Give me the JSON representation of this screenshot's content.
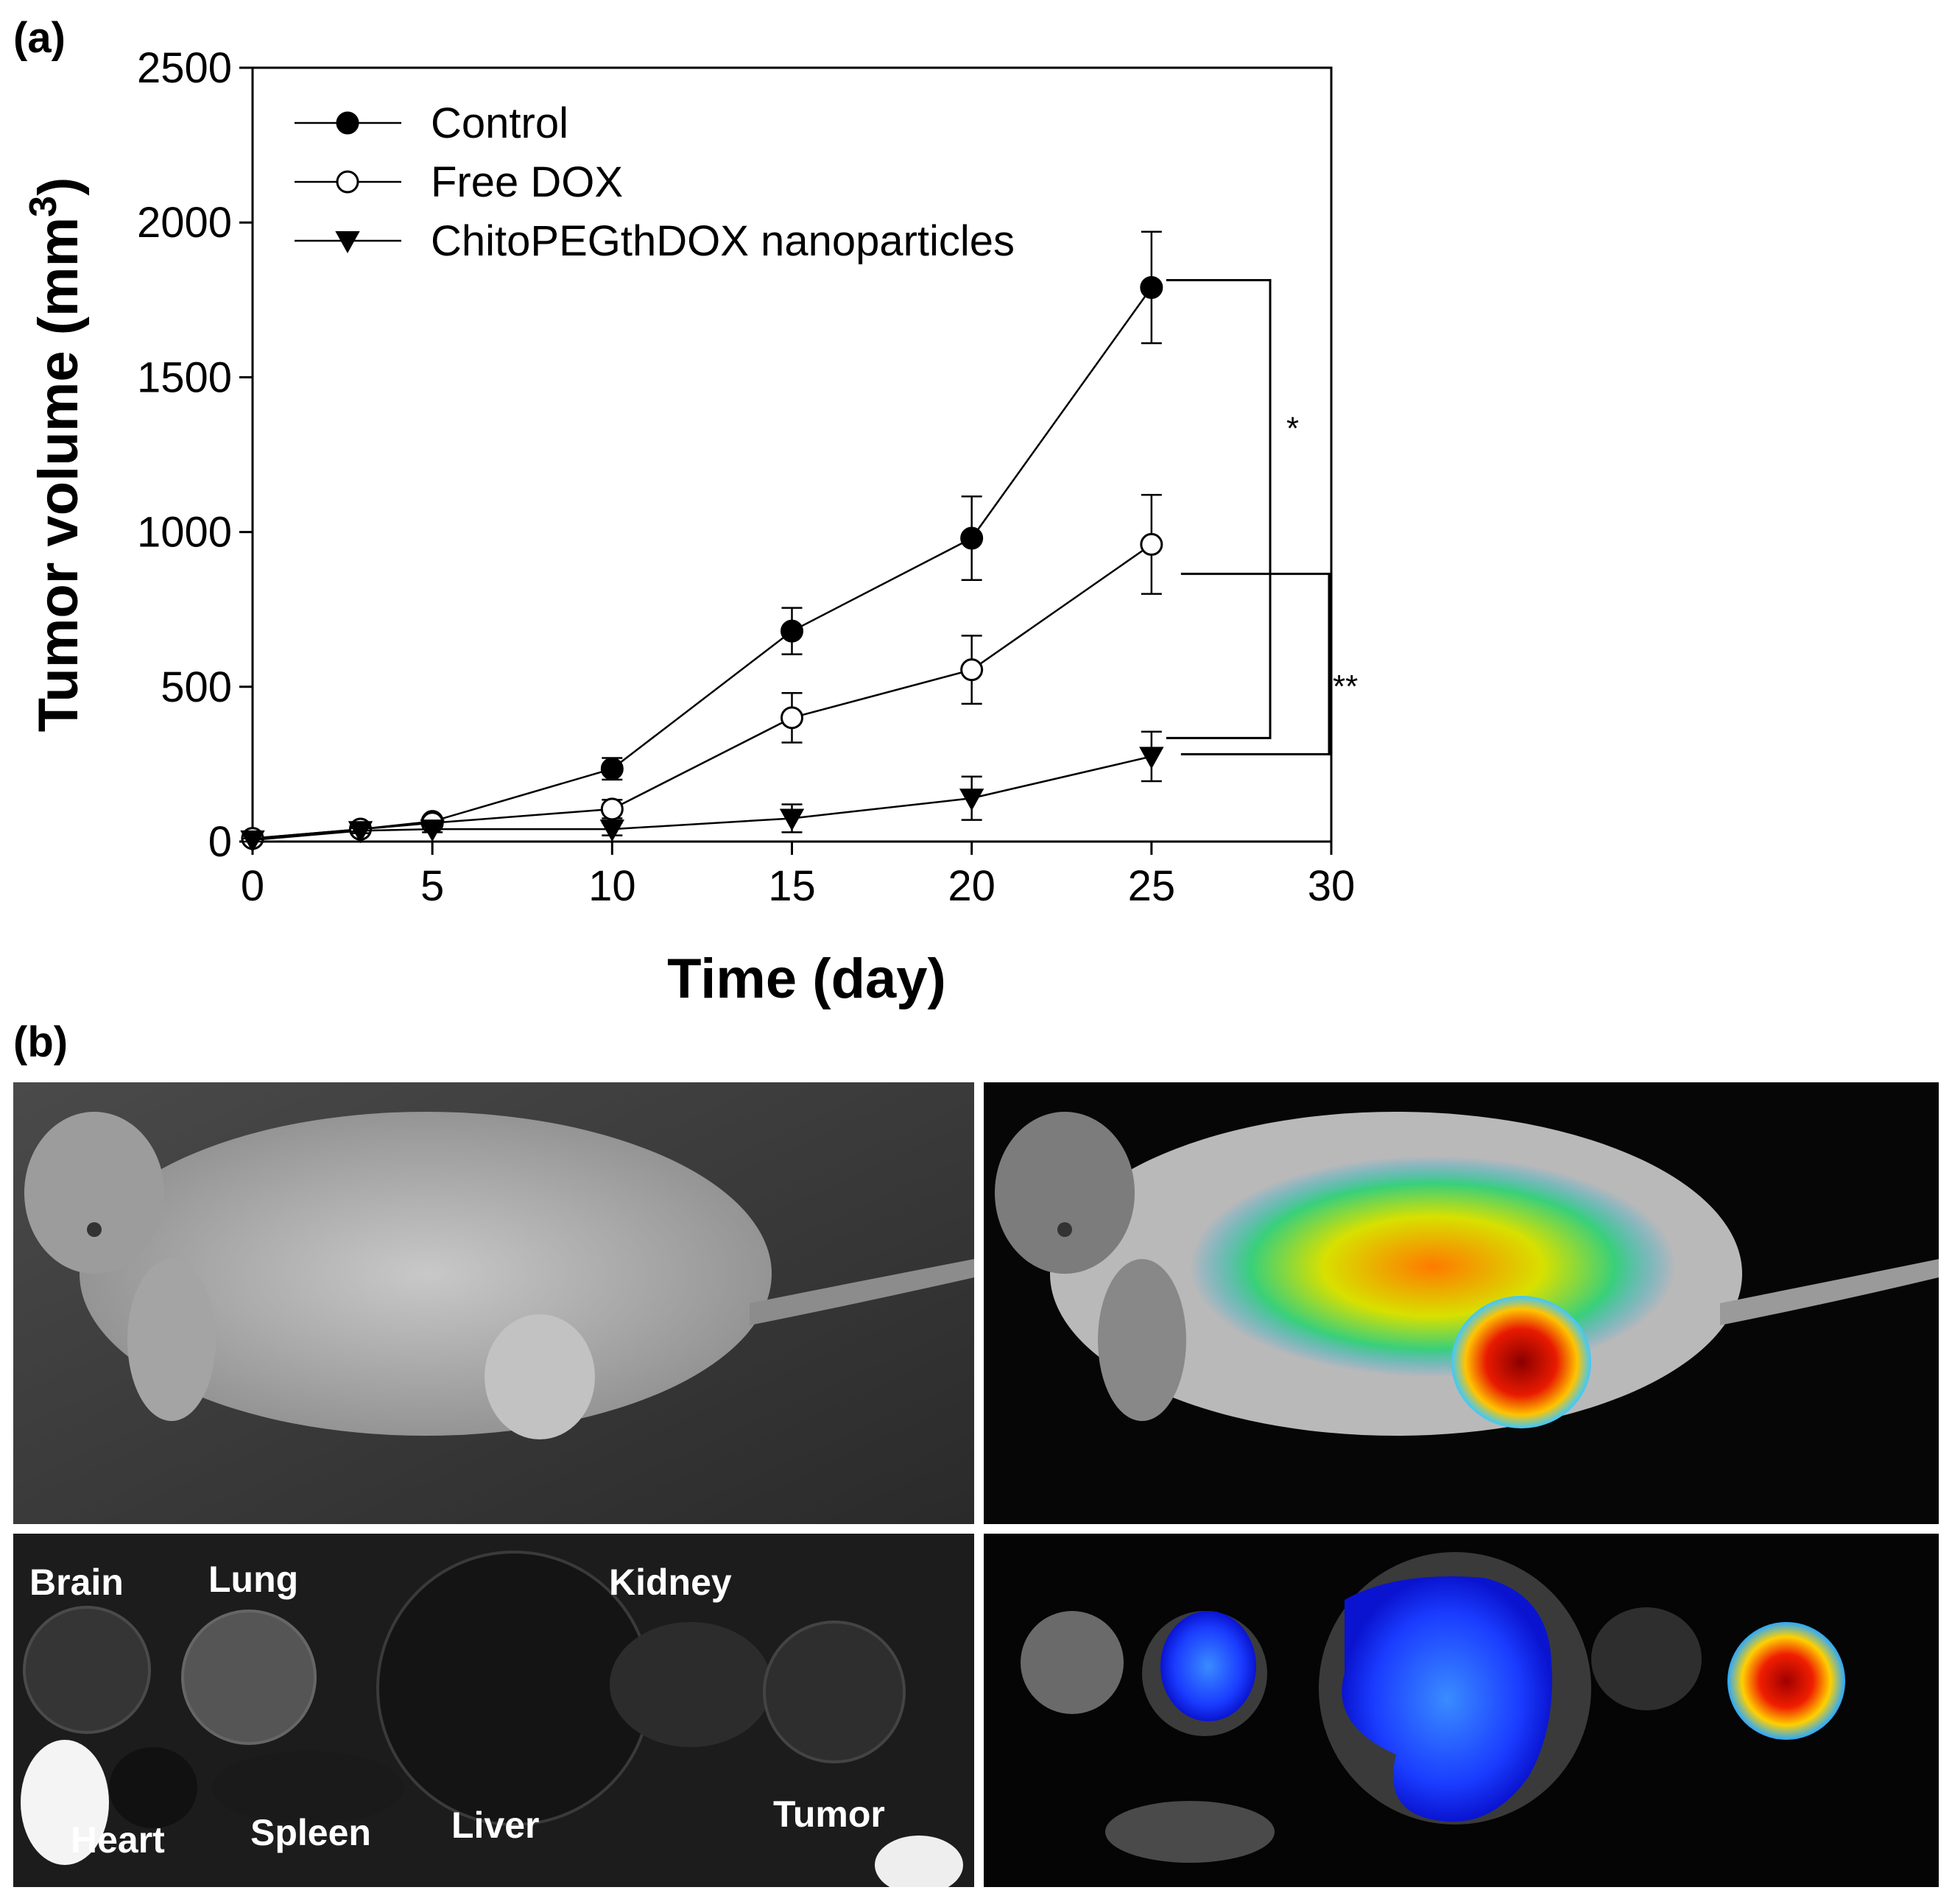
{
  "panels": {
    "a_label": "(a)",
    "b_label": "(b)"
  },
  "chart_data": {
    "type": "line",
    "xlabel": "Time (day)",
    "ylabel": "Tumor volume (mm",
    "ylabel_sup": "3",
    "ylabel_end": ")",
    "xlim": [
      0,
      30
    ],
    "ylim": [
      0,
      2500
    ],
    "xticks": [
      0,
      5,
      10,
      15,
      20,
      25,
      30
    ],
    "yticks": [
      0,
      500,
      1000,
      1500,
      2000,
      2500
    ],
    "grid": false,
    "legend_position": "top-left",
    "series": [
      {
        "name": "Control",
        "marker": "filled-circle",
        "x": [
          0,
          3,
          5,
          10,
          15,
          20,
          25
        ],
        "y": [
          10,
          40,
          65,
          235,
          680,
          980,
          1790
        ],
        "err": [
          5,
          10,
          12,
          35,
          75,
          135,
          180
        ]
      },
      {
        "name": "Free DOX",
        "marker": "open-circle",
        "x": [
          0,
          3,
          5,
          10,
          15,
          20,
          25
        ],
        "y": [
          10,
          40,
          60,
          105,
          400,
          555,
          960
        ],
        "err": [
          5,
          10,
          12,
          30,
          80,
          110,
          160
        ]
      },
      {
        "name": "ChitoPEGthDOX nanoparticles",
        "marker": "filled-triangle-down",
        "x": [
          0,
          3,
          5,
          10,
          15,
          20,
          25
        ],
        "y": [
          5,
          35,
          40,
          40,
          75,
          140,
          275
        ],
        "err": [
          5,
          8,
          10,
          20,
          45,
          70,
          80
        ]
      }
    ],
    "annotations": [
      {
        "text": "*",
        "between": [
          "Control",
          "ChitoPEGthDOX nanoparticles"
        ]
      },
      {
        "text": "**",
        "between": [
          "Free DOX",
          "ChitoPEGthDOX nanoparticles"
        ]
      }
    ]
  },
  "organ_labels": {
    "brain": "Brain",
    "lung": "Lung",
    "kidney": "Kidney",
    "heart": "Heart",
    "spleen": "Spleen",
    "liver": "Liver",
    "tumor": "Tumor"
  }
}
